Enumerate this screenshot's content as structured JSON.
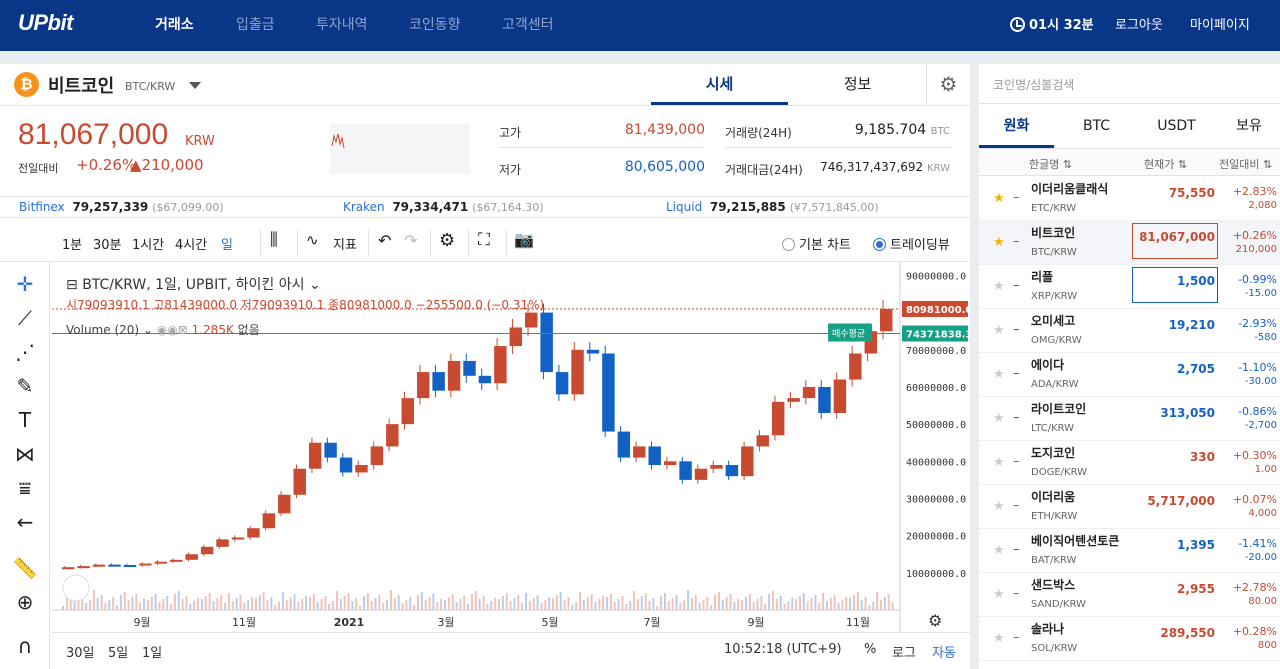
{
  "nav": {
    "logo": "UPbit",
    "items": [
      "거래소",
      "입출금",
      "투자내역",
      "코인동향",
      "고객센터"
    ],
    "clock": "01시 32분",
    "logout": "로그아웃",
    "mypage": "마이페이지"
  },
  "coin": {
    "name": "비트코인",
    "pair": "BTC/KRW",
    "tabs": [
      "시세",
      "정보"
    ],
    "price": "81,067,000",
    "price_unit": "KRW",
    "change_label": "전일대비",
    "change_rate": "+0.26%",
    "change_amount": "▲210,000",
    "high_label": "고가",
    "high": "81,439,000",
    "low_label": "저가",
    "low": "80,605,000",
    "volume_label": "거래량(24H)",
    "volume": "9,185.704",
    "volume_unit": "BTC",
    "trade_value_label": "거래대금(24H)",
    "trade_value": "746,317,437,692",
    "trade_value_unit": "KRW"
  },
  "exchanges": [
    {
      "name": "Bitfinex",
      "krw": "79,257,339",
      "usd": "($67,099.00)"
    },
    {
      "name": "Kraken",
      "krw": "79,334,471",
      "usd": "($67,164.30)"
    },
    {
      "name": "Liquid",
      "krw": "79,215,885",
      "usd": "(¥7,571,845.00)"
    }
  ],
  "toolbar": {
    "intervals": [
      "1분",
      "30분",
      "1시간",
      "4시간",
      "일"
    ],
    "indicator": "지표",
    "basic_chart": "기본 차트",
    "trading_view": "트레이딩뷰"
  },
  "chart_legend": {
    "title": "BTC/KRW, 1일, UPBIT, 하이킨 아시",
    "ohlc": "시79093910.1 고81439000.0 저79093910.1 종80981000.0 −255500.0 (−0.31%)",
    "volume": "Volume (20)",
    "volume_value": "1.285K",
    "volume_note": "없음"
  },
  "chart_data": {
    "type": "heikin-ashi candlestick",
    "y_ticks": [
      10000000,
      20000000,
      30000000,
      40000000,
      50000000,
      60000000,
      70000000,
      80000000,
      90000000
    ],
    "y_tick_labels": [
      "10000000.0",
      "20000000.0",
      "30000000.0",
      "40000000.0",
      "50000000.0",
      "60000000.0",
      "70000000.0",
      "80000000.0",
      "90000000.0"
    ],
    "x_tick_labels": [
      "9월",
      "11월",
      "2021",
      "3월",
      "5월",
      "7월",
      "9월",
      "11월"
    ],
    "ylim": [
      0,
      92000000
    ],
    "last_price_label": "80981000.0",
    "avg_buy_label": "매수평균",
    "avg_buy_value": "74371838.3",
    "series_close": [
      11500000,
      11800000,
      12200000,
      12100000,
      12000000,
      12500000,
      13000000,
      13500000,
      15000000,
      17000000,
      19000000,
      19500000,
      22000000,
      26000000,
      31000000,
      38000000,
      45000000,
      41000000,
      37000000,
      39000000,
      44000000,
      50000000,
      57000000,
      64000000,
      59000000,
      67000000,
      63000000,
      61000000,
      71000000,
      76000000,
      80000000,
      64000000,
      58000000,
      70000000,
      69000000,
      48000000,
      41000000,
      44000000,
      39000000,
      40000000,
      35000000,
      38000000,
      39000000,
      36000000,
      44000000,
      47000000,
      56000000,
      57000000,
      60000000,
      53000000,
      62000000,
      69000000,
      75000000,
      80981000
    ]
  },
  "bottom": {
    "ranges": [
      "30일",
      "5일",
      "1일"
    ],
    "time": "10:52:18 (UTC+9)",
    "percent": "%",
    "log": "로그",
    "auto": "자동"
  },
  "market": {
    "search_placeholder": "코인명/심볼검색",
    "tabs": [
      "원화",
      "BTC",
      "USDT",
      "보유"
    ],
    "col_name": "한글명 ⇅",
    "col_price": "현재가 ⇅",
    "col_change": "전일대비 ⇅",
    "rows": [
      {
        "name": "이더리움클래식",
        "symbol": "ETC/KRW",
        "price": "75,550",
        "rate": "+2.83%",
        "amount": "2,080",
        "dir": "up",
        "fav": true
      },
      {
        "name": "비트코인",
        "symbol": "BTC/KRW",
        "price": "81,067,000",
        "rate": "+0.26%",
        "amount": "210,000",
        "dir": "up",
        "fav": true
      },
      {
        "name": "리플",
        "symbol": "XRP/KRW",
        "price": "1,500",
        "rate": "-0.99%",
        "amount": "-15.00",
        "dir": "down",
        "fav": false
      },
      {
        "name": "오미세고",
        "symbol": "OMG/KRW",
        "price": "19,210",
        "rate": "-2.93%",
        "amount": "-580",
        "dir": "down",
        "fav": false
      },
      {
        "name": "에이다",
        "symbol": "ADA/KRW",
        "price": "2,705",
        "rate": "-1.10%",
        "amount": "-30.00",
        "dir": "down",
        "fav": false
      },
      {
        "name": "라이트코인",
        "symbol": "LTC/KRW",
        "price": "313,050",
        "rate": "-0.86%",
        "amount": "-2,700",
        "dir": "down",
        "fav": false
      },
      {
        "name": "도지코인",
        "symbol": "DOGE/KRW",
        "price": "330",
        "rate": "+0.30%",
        "amount": "1.00",
        "dir": "up",
        "fav": false
      },
      {
        "name": "이더리움",
        "symbol": "ETH/KRW",
        "price": "5,717,000",
        "rate": "+0.07%",
        "amount": "4,000",
        "dir": "up",
        "fav": false
      },
      {
        "name": "베이직어텐션토큰",
        "symbol": "BAT/KRW",
        "price": "1,395",
        "rate": "-1.41%",
        "amount": "-20.00",
        "dir": "down",
        "fav": false
      },
      {
        "name": "샌드박스",
        "symbol": "SAND/KRW",
        "price": "2,955",
        "rate": "+2.78%",
        "amount": "80.00",
        "dir": "up",
        "fav": false
      },
      {
        "name": "솔라나",
        "symbol": "SOL/KRW",
        "price": "289,550",
        "rate": "+0.28%",
        "amount": "800",
        "dir": "up",
        "fav": false
      }
    ]
  },
  "colors": {
    "up": "#c84a31",
    "down": "#1261c4",
    "brand": "#093687"
  }
}
